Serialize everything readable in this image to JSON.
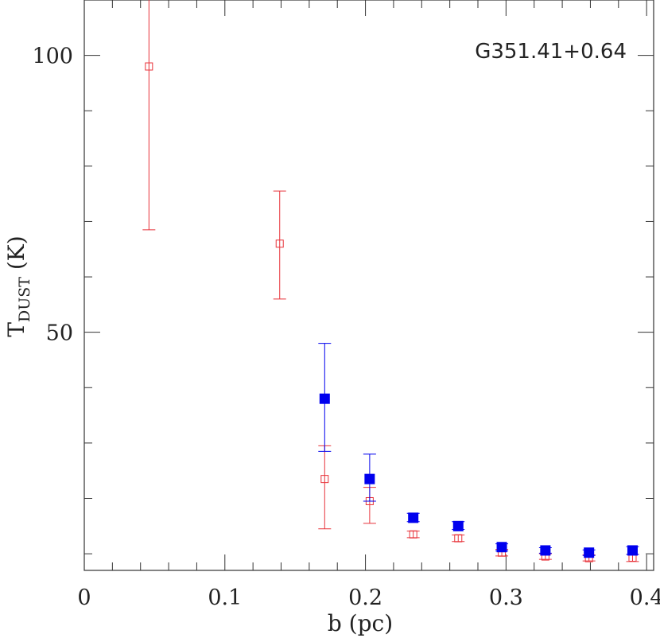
{
  "chart_data": {
    "type": "scatter",
    "annotation": "G351.41+0.64",
    "xlabel": "b (pc)",
    "ylabel": {
      "main": "T",
      "sub": "DUST",
      "unit": " (K)"
    },
    "xlim": [
      0,
      0.405
    ],
    "ylim": [
      7,
      110
    ],
    "x_ticks": [
      {
        "value": 0,
        "label": "0"
      },
      {
        "value": 0.1,
        "label": "0.1"
      },
      {
        "value": 0.2,
        "label": "0.2"
      },
      {
        "value": 0.3,
        "label": "0.3"
      },
      {
        "value": 0.4,
        "label": "0.4"
      }
    ],
    "y_ticks": [
      {
        "value": 50,
        "label": "50"
      },
      {
        "value": 100,
        "label": "100"
      }
    ],
    "grid": false,
    "series": [
      {
        "marker": "open-square",
        "color": "#e8333a",
        "points": [
          {
            "x": 0.046,
            "y": 98,
            "yerr_low": 68.5,
            "yerr_high": 112
          },
          {
            "x": 0.139,
            "y": 66,
            "yerr_low": 56,
            "yerr_high": 75.5
          },
          {
            "x": 0.171,
            "y": 23.5,
            "yerr_low": 14.5,
            "yerr_high": 29.5
          },
          {
            "x": 0.203,
            "y": 19.5,
            "yerr_low": 15.5,
            "yerr_high": 22
          },
          {
            "x": 0.234,
            "y": 13.5,
            "yerr_low": 12.9,
            "yerr_high": 14.1
          },
          {
            "x": 0.266,
            "y": 12.8,
            "yerr_low": 12.2,
            "yerr_high": 13.4
          },
          {
            "x": 0.297,
            "y": 10.2,
            "yerr_low": 9.6,
            "yerr_high": 10.8
          },
          {
            "x": 0.328,
            "y": 9.5,
            "yerr_low": 9.0,
            "yerr_high": 10.0
          },
          {
            "x": 0.359,
            "y": 9.2,
            "yerr_low": 8.7,
            "yerr_high": 9.8
          },
          {
            "x": 0.39,
            "y": 9.3,
            "yerr_low": 8.6,
            "yerr_high": 9.9
          }
        ]
      },
      {
        "marker": "filled-square",
        "color": "#0000ee",
        "points": [
          {
            "x": 0.171,
            "y": 38,
            "yerr_low": 28.5,
            "yerr_high": 48
          },
          {
            "x": 0.203,
            "y": 23.5,
            "yerr_low": 19.5,
            "yerr_high": 28
          },
          {
            "x": 0.234,
            "y": 16.5,
            "yerr_low": 15.8,
            "yerr_high": 17.3
          },
          {
            "x": 0.266,
            "y": 15,
            "yerr_low": 14.4,
            "yerr_high": 15.8
          },
          {
            "x": 0.297,
            "y": 11.2,
            "yerr_low": 10.5,
            "yerr_high": 11.8
          },
          {
            "x": 0.328,
            "y": 10.6,
            "yerr_low": 10.1,
            "yerr_high": 11.1
          },
          {
            "x": 0.359,
            "y": 10.2,
            "yerr_low": 9.7,
            "yerr_high": 10.7
          },
          {
            "x": 0.39,
            "y": 10.6,
            "yerr_low": 9.9,
            "yerr_high": 11.3
          }
        ]
      }
    ]
  }
}
